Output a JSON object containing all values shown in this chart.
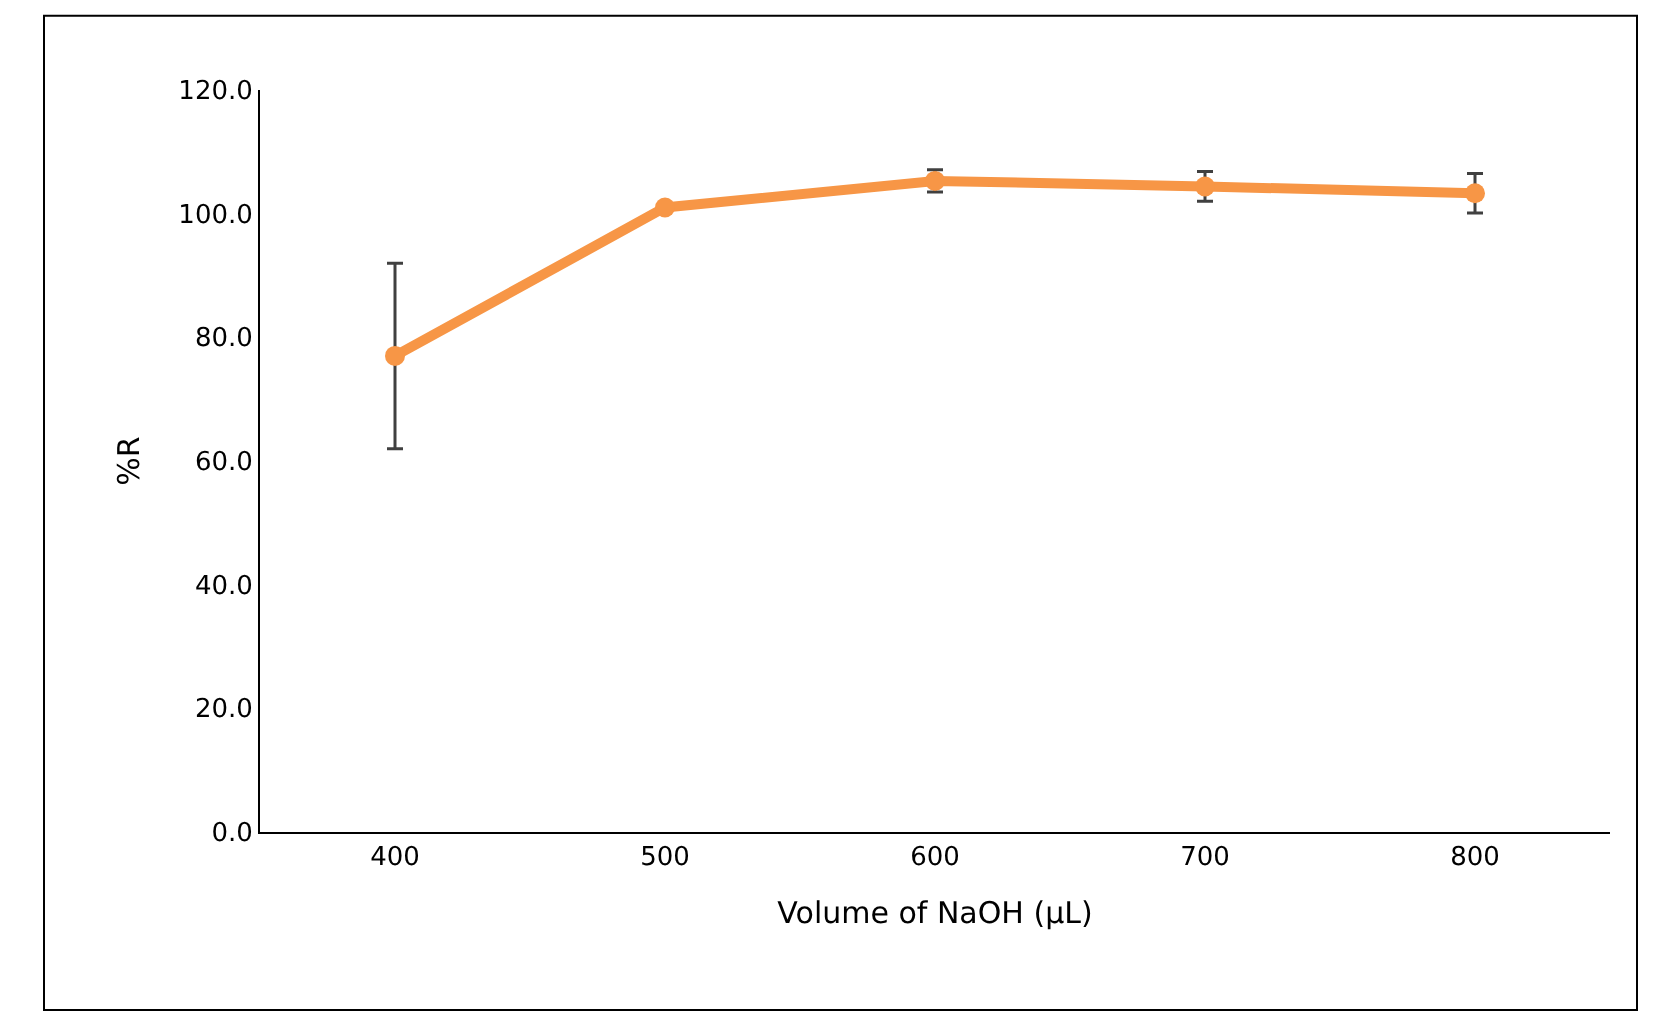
{
  "chart_data": {
    "type": "line",
    "xlabel": "Volume of NaOH (µL)",
    "ylabel": "%R",
    "categories": [
      "400",
      "500",
      "600",
      "700",
      "800"
    ],
    "series": [
      {
        "color": "#f79646",
        "values": [
          77.0,
          101.0,
          105.3,
          104.4,
          103.3
        ],
        "errors": [
          15.0,
          null,
          1.8,
          2.4,
          3.2
        ]
      }
    ],
    "ylim": [
      0,
      120
    ],
    "yticks": [
      {
        "value": 0,
        "label": "0.0"
      },
      {
        "value": 20,
        "label": "20.0"
      },
      {
        "value": 40,
        "label": "40.0"
      },
      {
        "value": 60,
        "label": "60.0"
      },
      {
        "value": 80,
        "label": "80.0"
      },
      {
        "value": 100,
        "label": "100.0"
      },
      {
        "value": 120,
        "label": "120.0"
      }
    ],
    "marker": "circle",
    "line_style": "solid",
    "legend": false
  }
}
